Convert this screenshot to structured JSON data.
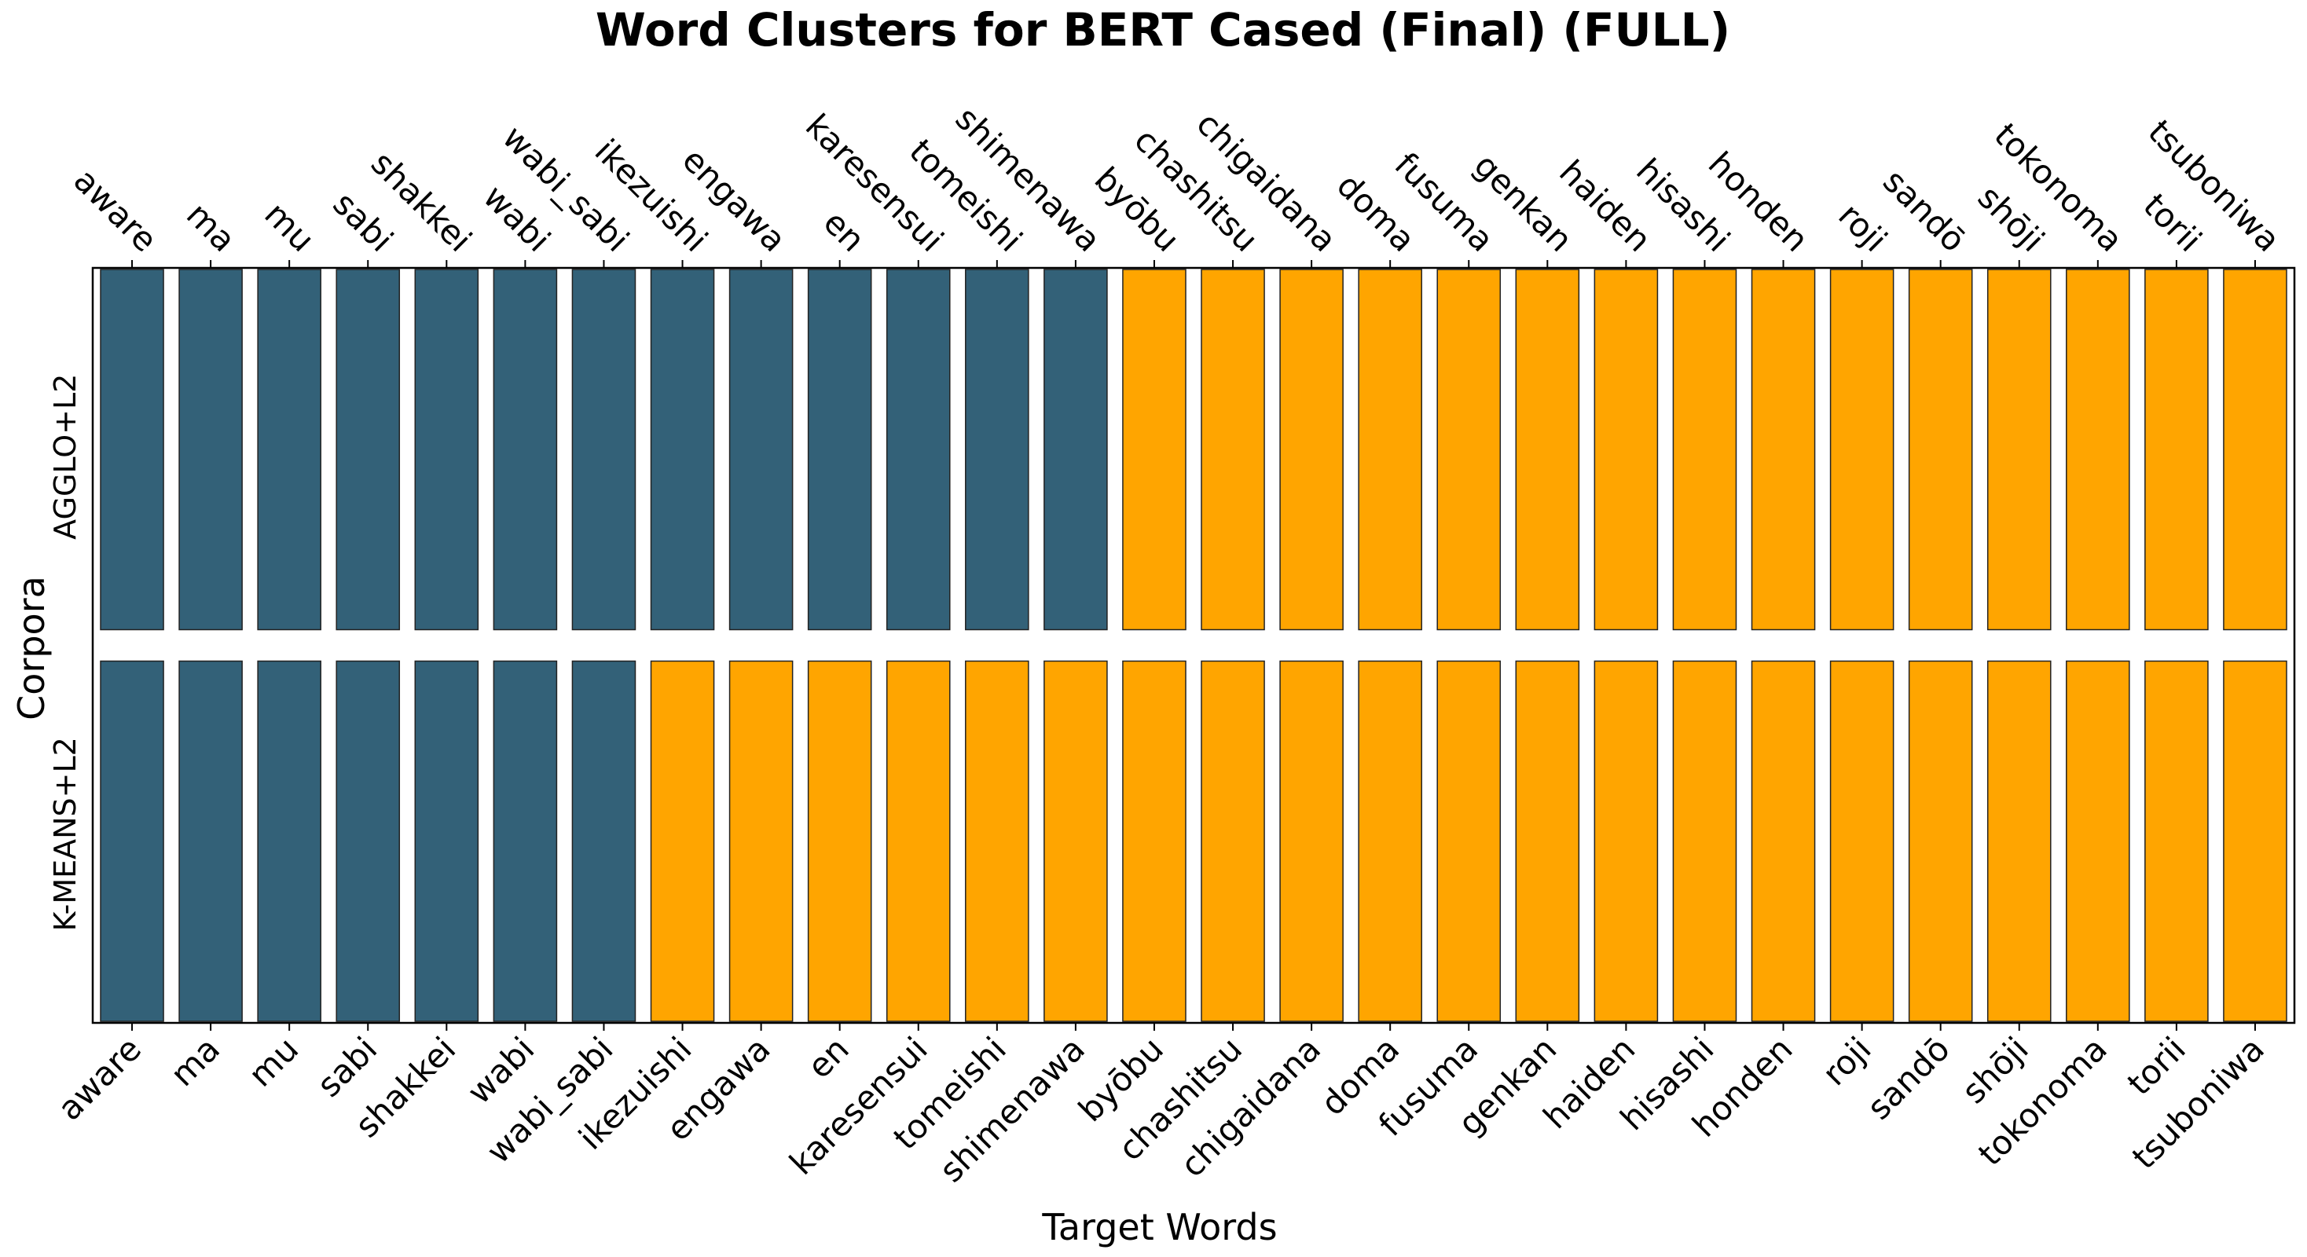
{
  "chart_data": {
    "type": "heatmap",
    "title": "Word Clusters for BERT Cased (Final) (FULL)",
    "xlabel": "Target Words",
    "ylabel": "Corpora",
    "grid": false,
    "legend": "none",
    "colors": {
      "cluster_0": "#336178",
      "cluster_1": "#FFA500"
    },
    "x": [
      "aware",
      "ma",
      "mu",
      "sabi",
      "shakkei",
      "wabi",
      "wabi_sabi",
      "ikezuishi",
      "engawa",
      "en",
      "karesensui",
      "tomeishi",
      "shimenawa",
      "byōbu",
      "chashitsu",
      "chigaidana",
      "doma",
      "fusuma",
      "genkan",
      "haiden",
      "hisashi",
      "honden",
      "roji",
      "sandō",
      "shōji",
      "tokonoma",
      "torii",
      "tsuboniwa"
    ],
    "rows": [
      {
        "name": "AGGLO+L2",
        "values": [
          0,
          0,
          0,
          0,
          0,
          0,
          0,
          0,
          0,
          0,
          0,
          0,
          0,
          1,
          1,
          1,
          1,
          1,
          1,
          1,
          1,
          1,
          1,
          1,
          1,
          1,
          1,
          1
        ]
      },
      {
        "name": "K-MEANS+L2",
        "values": [
          0,
          0,
          0,
          0,
          0,
          0,
          0,
          1,
          1,
          1,
          1,
          1,
          1,
          1,
          1,
          1,
          1,
          1,
          1,
          1,
          1,
          1,
          1,
          1,
          1,
          1,
          1,
          1
        ]
      }
    ]
  }
}
